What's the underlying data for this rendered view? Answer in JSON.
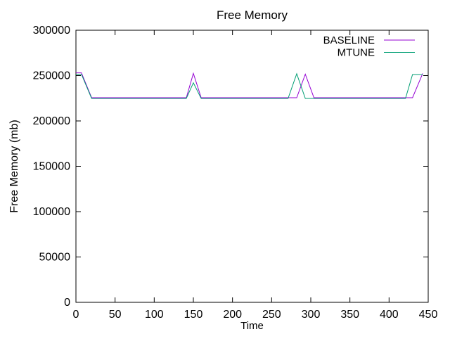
{
  "chart_data": {
    "type": "line",
    "title": "Free Memory",
    "xlabel": "Time",
    "ylabel": "Free Memory (mb)",
    "xlim": [
      0,
      450
    ],
    "ylim": [
      0,
      300000
    ],
    "xticks": [
      0,
      50,
      100,
      150,
      200,
      250,
      300,
      350,
      400,
      450
    ],
    "yticks": [
      0,
      50000,
      100000,
      150000,
      200000,
      250000,
      300000
    ],
    "grid": false,
    "legend_position": "top-right-inside",
    "series": [
      {
        "name": "BASELINE",
        "color": "#9400d3",
        "points": [
          [
            0,
            253000
          ],
          [
            7,
            253000
          ],
          [
            20,
            225600
          ],
          [
            141,
            225600
          ],
          [
            150,
            252500
          ],
          [
            160,
            225600
          ],
          [
            282,
            225600
          ],
          [
            293,
            251500
          ],
          [
            304,
            225600
          ],
          [
            430,
            225600
          ],
          [
            443,
            252400
          ]
        ]
      },
      {
        "name": "MTUNE",
        "color": "#009e73",
        "points": [
          [
            0,
            251500
          ],
          [
            7,
            251500
          ],
          [
            20,
            224800
          ],
          [
            141,
            224800
          ],
          [
            150,
            242000
          ],
          [
            160,
            224800
          ],
          [
            271,
            224800
          ],
          [
            282,
            252000
          ],
          [
            293,
            224800
          ],
          [
            421,
            224800
          ],
          [
            430,
            251200
          ],
          [
            443,
            251200
          ]
        ]
      }
    ]
  },
  "colors": {
    "background": "#ffffff",
    "axis": "#000000",
    "text": "#000000"
  }
}
